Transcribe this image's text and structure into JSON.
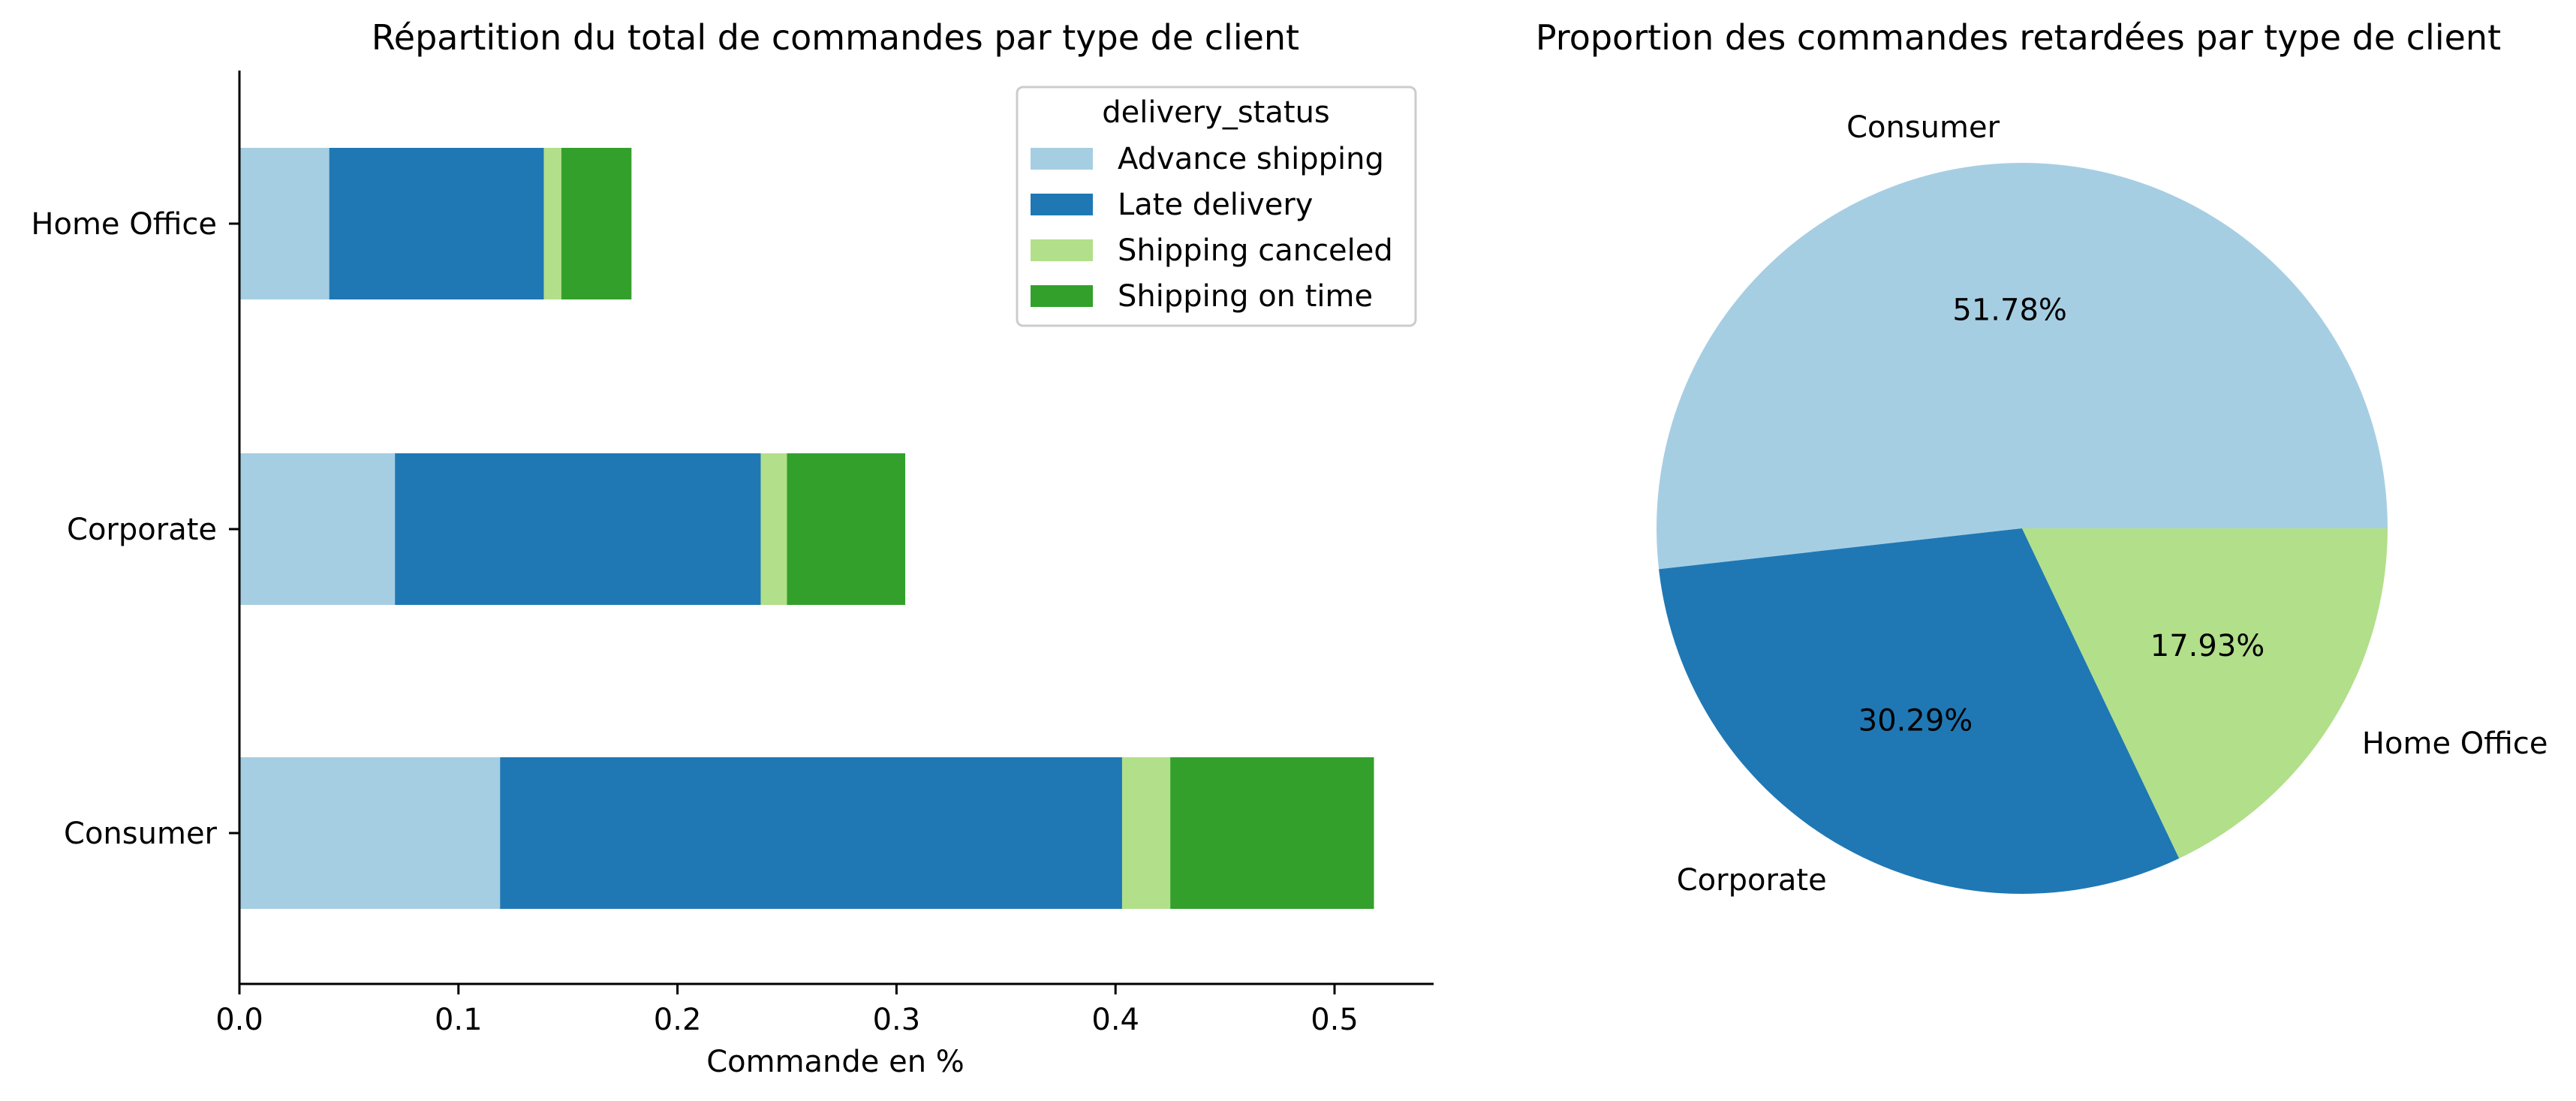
{
  "chart_data": [
    {
      "type": "bar",
      "orientation": "horizontal",
      "stacked": true,
      "title": "Répartition du total de commandes par type de client",
      "xlabel": "Commande en %",
      "ylabel": "",
      "xlim": [
        0,
        0.545
      ],
      "xticks": [
        "0.0",
        "0.1",
        "0.2",
        "0.3",
        "0.4",
        "0.5"
      ],
      "categories": [
        "Consumer",
        "Corporate",
        "Home Office"
      ],
      "legend": {
        "title": "delivery_status",
        "position": "upper right"
      },
      "series": [
        {
          "name": "Advance shipping",
          "color": "#a6cee3",
          "values": [
            0.119,
            0.071,
            0.041
          ]
        },
        {
          "name": "Late delivery",
          "color": "#1f78b4",
          "values": [
            0.284,
            0.167,
            0.098
          ]
        },
        {
          "name": "Shipping canceled",
          "color": "#b2df8a",
          "values": [
            0.022,
            0.012,
            0.008
          ]
        },
        {
          "name": "Shipping on time",
          "color": "#33a02c",
          "values": [
            0.093,
            0.054,
            0.032
          ]
        }
      ],
      "grid": false
    },
    {
      "type": "pie",
      "title": "Proportion des commandes retardées par type de client",
      "labels": [
        "Consumer",
        "Corporate",
        "Home Office"
      ],
      "values": [
        51.78,
        30.29,
        17.93
      ],
      "value_labels": [
        "51.78%",
        "30.29%",
        "17.93%"
      ],
      "colors": [
        "#a6cee3",
        "#1f78b4",
        "#b2df8a"
      ]
    }
  ]
}
